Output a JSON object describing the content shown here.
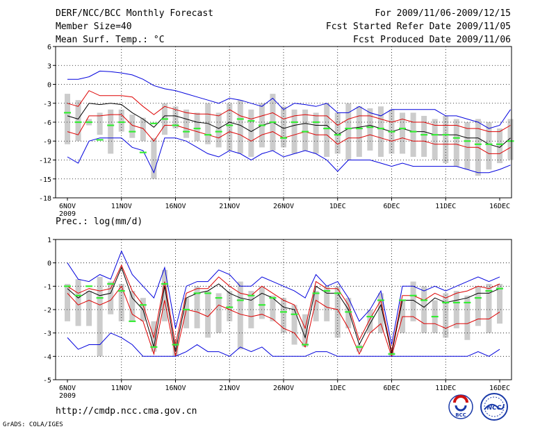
{
  "header": {
    "line1_left": "DERF/NCC/BCC Monthly Forecast",
    "line2_left": "Member Size=40",
    "line3_left": "Mean Surf. Temp.: °C",
    "line1_right": "For 2009/11/06-2009/12/15",
    "line2_right": "Fcst Started Refer Date 2009/11/05",
    "line3_right": "Fcst Produced Date 2009/11/06"
  },
  "footer": {
    "url": "http://cmdp.ncc.cma.gov.cn",
    "credit": "GrADS: COLA/IGES",
    "logo_bcc_label": "BCC",
    "logo_ncc_label": "NCC"
  },
  "colors": {
    "box": "#cccccc",
    "median": "#33ee33",
    "mean": "#000000",
    "inner": "#dd0000",
    "outer": "#0000dd",
    "grid": "#000000"
  },
  "chart_data": [
    {
      "type": "line",
      "title": "Mean Surf. Temp.: °C",
      "ylim": [
        -18,
        6
      ],
      "yticks": [
        6,
        3,
        0,
        -3,
        -6,
        -9,
        -12,
        -15,
        -18
      ],
      "xlim": [
        0,
        40
      ],
      "xticks": [
        {
          "day": 0,
          "label": "6NOV",
          "sub": "2009"
        },
        {
          "day": 5,
          "label": "11NOV"
        },
        {
          "day": 10,
          "label": "16NOV"
        },
        {
          "day": 15,
          "label": "21NOV"
        },
        {
          "day": 20,
          "label": "26NOV"
        },
        {
          "day": 25,
          "label": "1DEC"
        },
        {
          "day": 30,
          "label": "6DEC"
        },
        {
          "day": 35,
          "label": "11DEC"
        },
        {
          "day": 40,
          "label": "16DEC"
        }
      ],
      "grid": true,
      "series": [
        {
          "name": "max",
          "role": "outer",
          "values": [
            0.8,
            0.8,
            1.2,
            2.1,
            2.0,
            1.8,
            1.5,
            0.8,
            -0.2,
            -0.7,
            -1.0,
            -1.5,
            -2.0,
            -2.5,
            -3.0,
            -2.2,
            -2.5,
            -3.0,
            -3.5,
            -2.2,
            -4.0,
            -3.0,
            -3.2,
            -3.5,
            -3.0,
            -4.5,
            -4.5,
            -3.5,
            -4.5,
            -5.0,
            -4.0,
            -4.0,
            -4.0,
            -4.0,
            -4.0,
            -5.0,
            -5.0,
            -5.5,
            -6.0,
            -7.0,
            -6.5,
            -4.0
          ]
        },
        {
          "name": "upper",
          "role": "inner",
          "values": [
            -3.0,
            -3.5,
            -1.0,
            -1.8,
            -1.8,
            -1.8,
            -2.0,
            -3.5,
            -4.8,
            -3.5,
            -4.0,
            -4.5,
            -4.7,
            -4.7,
            -5.0,
            -4.0,
            -5.0,
            -5.5,
            -5.0,
            -4.5,
            -5.5,
            -5.0,
            -4.8,
            -5.0,
            -5.0,
            -6.5,
            -5.5,
            -5.0,
            -5.0,
            -5.5,
            -6.0,
            -5.5,
            -6.0,
            -6.0,
            -6.5,
            -6.5,
            -6.5,
            -7.0,
            -7.0,
            -7.5,
            -7.5,
            -6.5
          ]
        },
        {
          "name": "mean",
          "role": "mean",
          "values": [
            -5.0,
            -5.5,
            -3.0,
            -3.2,
            -3.0,
            -3.2,
            -4.5,
            -5.5,
            -6.8,
            -5.0,
            -5.0,
            -5.5,
            -6.0,
            -6.2,
            -7.0,
            -6.0,
            -6.5,
            -7.5,
            -6.5,
            -6.0,
            -7.0,
            -6.5,
            -6.2,
            -6.5,
            -6.5,
            -8.0,
            -7.0,
            -6.8,
            -6.5,
            -7.0,
            -7.5,
            -7.0,
            -7.5,
            -7.5,
            -8.0,
            -8.0,
            -8.0,
            -8.5,
            -8.5,
            -9.5,
            -10.0,
            -8.5
          ]
        },
        {
          "name": "lower",
          "role": "inner",
          "values": [
            -7.5,
            -8.0,
            -5.0,
            -5.0,
            -4.8,
            -4.8,
            -6.5,
            -7.0,
            -9.0,
            -6.5,
            -6.5,
            -7.0,
            -7.5,
            -8.0,
            -8.5,
            -7.5,
            -8.0,
            -9.0,
            -8.0,
            -7.5,
            -8.5,
            -8.0,
            -7.5,
            -8.0,
            -8.0,
            -9.5,
            -8.5,
            -8.5,
            -8.0,
            -8.5,
            -9.0,
            -8.5,
            -9.0,
            -9.0,
            -9.5,
            -9.5,
            -9.5,
            -10.0,
            -10.0,
            -11.0,
            -11.0,
            -10.0
          ]
        },
        {
          "name": "min",
          "role": "outer",
          "values": [
            -11.5,
            -12.5,
            -9.0,
            -8.5,
            -8.5,
            -8.5,
            -10.0,
            -10.5,
            -14.0,
            -8.5,
            -8.5,
            -9.0,
            -10.0,
            -11.0,
            -11.5,
            -10.5,
            -11.0,
            -12.0,
            -11.0,
            -10.5,
            -11.5,
            -11.0,
            -10.5,
            -11.0,
            -12.0,
            -13.8,
            -12.0,
            -12.0,
            -12.0,
            -12.5,
            -13.0,
            -12.5,
            -13.0,
            -13.0,
            -13.0,
            -13.0,
            -13.0,
            -13.5,
            -14.0,
            -14.0,
            -13.5,
            -12.8
          ]
        }
      ],
      "boxes_top": [
        -1.5,
        -2.5,
        -5.5,
        -4.5,
        -4.0,
        -4.0,
        -4.8,
        -5.3,
        -8.5,
        -3.0,
        -3.5,
        -4.0,
        -4.5,
        -3.0,
        -4.5,
        -3.0,
        -2.5,
        -4.0,
        -3.0,
        -1.5,
        -3.5,
        -4.0,
        -4.0,
        -4.5,
        -3.0,
        -4.5,
        -3.0,
        -3.5,
        -3.8,
        -3.5,
        -4.0,
        -4.5,
        -4.5,
        -5.0,
        -5.5,
        -5.0,
        -5.5,
        -6.0,
        -5.5,
        -6.0,
        -7.0,
        -5.5
      ],
      "boxes_bottom": [
        -9.5,
        -9.0,
        -6.5,
        -8.0,
        -11.0,
        -7.5,
        -8.5,
        -9.0,
        -15.0,
        -8.0,
        -7.0,
        -8.5,
        -9.0,
        -9.5,
        -10.0,
        -10.5,
        -11.0,
        -11.5,
        -10.0,
        -10.5,
        -10.0,
        -11.0,
        -10.5,
        -11.0,
        -11.5,
        -11.0,
        -12.0,
        -11.5,
        -10.5,
        -11.5,
        -11.0,
        -11.0,
        -11.5,
        -11.5,
        -12.0,
        -12.5,
        -13.0,
        -13.5,
        -14.5,
        -13.5,
        -12.5,
        -12.0
      ],
      "medians": [
        -4.5,
        -6.0,
        -6.0,
        -8.8,
        -6.5,
        -6.0,
        -7.5,
        -10.8,
        -6.2,
        -5.5,
        -6.5,
        -7.5,
        -7.0,
        -8.0,
        -7.5,
        -6.5,
        -5.5,
        -5.8,
        -6.5,
        -6.0,
        -8.5,
        -6.0,
        -7.5,
        -6.0,
        -7.0,
        -8.0,
        -7.0,
        -7.0,
        -6.8,
        -7.0,
        -7.5,
        -7.0,
        -7.5,
        -8.0,
        -8.0,
        -8.0,
        -8.5,
        -9.0,
        -9.5,
        -9.5,
        -9.5,
        -9.0
      ]
    },
    {
      "type": "line",
      "title": "Prec.: log(mm/d)",
      "ylim": [
        -5,
        1
      ],
      "yticks": [
        1,
        0,
        -1,
        -2,
        -3,
        -4,
        -5
      ],
      "xlim": [
        0,
        40
      ],
      "xticks": [
        {
          "day": 0,
          "label": "6NOV",
          "sub": "2009"
        },
        {
          "day": 5,
          "label": "11NOV"
        },
        {
          "day": 10,
          "label": "16NOV"
        },
        {
          "day": 15,
          "label": "21NOV"
        },
        {
          "day": 20,
          "label": "26NOV"
        },
        {
          "day": 25,
          "label": "1DEC"
        },
        {
          "day": 30,
          "label": "6DEC"
        },
        {
          "day": 35,
          "label": "11DEC"
        },
        {
          "day": 40,
          "label": "16DEC"
        }
      ],
      "grid": true,
      "series": [
        {
          "name": "max",
          "role": "outer",
          "values": [
            0.0,
            -0.7,
            -0.8,
            -0.5,
            -0.7,
            0.5,
            -0.5,
            -1.0,
            -1.5,
            -0.2,
            -2.8,
            -1.0,
            -0.8,
            -0.8,
            -0.3,
            -0.5,
            -1.0,
            -1.0,
            -0.6,
            -0.8,
            -1.0,
            -1.2,
            -1.5,
            -0.5,
            -1.0,
            -0.8,
            -1.5,
            -2.5,
            -2.0,
            -1.2,
            -3.5,
            -1.0,
            -1.0,
            -1.2,
            -1.0,
            -1.2,
            -1.0,
            -0.8,
            -0.6,
            -0.8,
            -0.6
          ]
        },
        {
          "name": "upper",
          "role": "inner",
          "values": [
            -1.0,
            -1.3,
            -1.1,
            -1.2,
            -1.1,
            -0.1,
            -1.2,
            -1.8,
            -3.2,
            -0.8,
            -3.5,
            -1.3,
            -1.1,
            -1.1,
            -0.6,
            -1.0,
            -1.3,
            -1.4,
            -1.0,
            -1.3,
            -1.6,
            -1.8,
            -2.8,
            -0.8,
            -1.1,
            -1.1,
            -1.8,
            -3.3,
            -2.4,
            -1.6,
            -3.8,
            -1.4,
            -1.4,
            -1.6,
            -1.3,
            -1.5,
            -1.3,
            -1.2,
            -1.0,
            -1.1,
            -0.9
          ]
        },
        {
          "name": "mean",
          "role": "mean",
          "values": [
            -1.1,
            -1.5,
            -1.2,
            -1.4,
            -1.3,
            -0.2,
            -1.5,
            -2.0,
            -3.6,
            -1.0,
            -3.8,
            -1.5,
            -1.3,
            -1.2,
            -0.9,
            -1.3,
            -1.5,
            -1.6,
            -1.3,
            -1.5,
            -1.9,
            -2.0,
            -3.2,
            -1.0,
            -1.3,
            -1.3,
            -2.0,
            -3.5,
            -2.6,
            -1.8,
            -3.9,
            -1.6,
            -1.6,
            -1.9,
            -1.5,
            -1.7,
            -1.6,
            -1.5,
            -1.3,
            -1.3,
            -1.1
          ]
        },
        {
          "name": "lower",
          "role": "inner",
          "values": [
            -1.3,
            -1.8,
            -1.6,
            -1.8,
            -1.6,
            -1.0,
            -2.2,
            -2.5,
            -3.9,
            -1.6,
            -4.0,
            -2.0,
            -2.1,
            -2.3,
            -1.8,
            -2.0,
            -2.2,
            -2.3,
            -2.2,
            -2.4,
            -2.8,
            -3.0,
            -3.6,
            -1.6,
            -1.9,
            -2.0,
            -2.8,
            -3.9,
            -3.0,
            -2.6,
            -4.0,
            -2.3,
            -2.3,
            -2.6,
            -2.6,
            -2.8,
            -2.6,
            -2.6,
            -2.4,
            -2.4,
            -2.1
          ]
        },
        {
          "name": "min",
          "role": "outer",
          "values": [
            -3.2,
            -3.7,
            -3.5,
            -3.5,
            -3.0,
            -3.2,
            -3.5,
            -4.0,
            -4.0,
            -4.0,
            -4.0,
            -3.8,
            -3.5,
            -3.8,
            -3.8,
            -4.0,
            -3.6,
            -3.8,
            -3.6,
            -4.0,
            -4.0,
            -4.0,
            -4.0,
            -3.8,
            -3.8,
            -4.0,
            -4.0,
            -4.0,
            -4.0,
            -4.0,
            -4.0,
            -4.0,
            -4.0,
            -4.0,
            -4.0,
            -4.0,
            -4.0,
            -4.0,
            -3.8,
            -4.0,
            -3.7
          ]
        }
      ],
      "boxes_top": [
        -0.9,
        -0.7,
        -1.2,
        -0.6,
        -0.8,
        -0.9,
        -1.2,
        -1.5,
        -2.5,
        -0.3,
        -3.3,
        -1.5,
        -1.0,
        -1.2,
        -1.3,
        -1.2,
        -0.8,
        -1.2,
        -1.0,
        -1.4,
        -1.5,
        -1.8,
        -2.2,
        -1.2,
        -1.0,
        -1.0,
        -1.5,
        -3.5,
        -2.0,
        -1.3,
        -3.8,
        -1.6,
        -0.8,
        -1.0,
        -1.6,
        -1.3,
        -1.2,
        -1.4,
        -1.0,
        -0.9,
        -0.9
      ],
      "boxes_bottom": [
        -2.5,
        -2.7,
        -2.7,
        -4.0,
        -2.2,
        -2.5,
        -2.5,
        -2.5,
        -3.8,
        -2.5,
        -4.0,
        -2.8,
        -2.8,
        -3.2,
        -3.0,
        -2.5,
        -3.7,
        -2.8,
        -2.4,
        -2.5,
        -3.0,
        -3.5,
        -3.6,
        -2.5,
        -2.5,
        -3.2,
        -2.8,
        -3.8,
        -3.0,
        -3.0,
        -4.0,
        -3.0,
        -2.5,
        -3.0,
        -3.0,
        -3.2,
        -2.8,
        -3.3,
        -2.7,
        -3.0,
        -2.6
      ],
      "medians": [
        -1.0,
        -1.4,
        -1.0,
        -1.5,
        -0.9,
        -1.2,
        -2.5,
        -1.8,
        -3.6,
        -0.9,
        -3.5,
        -2.0,
        -1.3,
        -1.3,
        -1.5,
        -1.9,
        -1.6,
        -1.4,
        -1.8,
        -1.5,
        -2.1,
        -2.2,
        -3.5,
        -1.3,
        -1.2,
        -1.3,
        -2.1,
        -3.6,
        -2.3,
        -1.6,
        -3.9,
        -1.6,
        -1.4,
        -1.6,
        -2.3,
        -1.7,
        -1.7,
        -1.7,
        -1.5,
        -1.2,
        -1.1
      ]
    }
  ]
}
